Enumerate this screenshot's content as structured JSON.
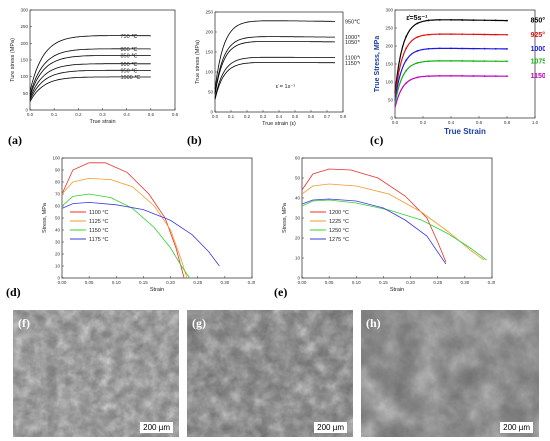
{
  "chart_data": [
    {
      "panel": "(a)",
      "type": "line",
      "xlabel": "True strain",
      "ylabel": "Ture stress (MPa)",
      "xlim": [
        0,
        0.6
      ],
      "ylim": [
        0,
        300
      ],
      "xticks": [
        "0.0",
        "0.1",
        "0.2",
        "0.3",
        "0.4",
        "0.5",
        "0.6"
      ],
      "yticks": [
        "0",
        "50",
        "100",
        "150",
        "200",
        "250",
        "300"
      ],
      "series": [
        {
          "name": "750 ℃",
          "peak": 225,
          "end": 0.5,
          "color": "#000000"
        },
        {
          "name": "800 ℃",
          "peak": 185,
          "end": 0.5,
          "color": "#000000"
        },
        {
          "name": "850 ℃",
          "peak": 165,
          "end": 0.5,
          "color": "#000000"
        },
        {
          "name": "900 ℃",
          "peak": 140,
          "end": 0.5,
          "color": "#000000"
        },
        {
          "name": "950 ℃",
          "peak": 120,
          "end": 0.5,
          "color": "#000000"
        },
        {
          "name": "1000 ℃",
          "peak": 100,
          "end": 0.5,
          "color": "#000000"
        }
      ]
    },
    {
      "panel": "(b)",
      "type": "line",
      "xlabel": "True strain (ε)",
      "ylabel": "True stress (MPa)",
      "xlim": [
        0,
        0.8
      ],
      "ylim": [
        0,
        250
      ],
      "xticks": [
        "0.0",
        "0.1",
        "0.2",
        "0.3",
        "0.4",
        "0.5",
        "0.6",
        "0.7",
        "0.8"
      ],
      "yticks": [
        "0",
        "50",
        "100",
        "150",
        "200",
        "250"
      ],
      "annotation": "ε̇ = 1s⁻¹",
      "series": [
        {
          "name": "950℃",
          "peak": 230,
          "end": 0.75,
          "color": "#000000"
        },
        {
          "name": "1000℃",
          "peak": 190,
          "end": 0.75,
          "color": "#000000"
        },
        {
          "name": "1050℃",
          "peak": 178,
          "end": 0.75,
          "color": "#000000"
        },
        {
          "name": "1100℃",
          "peak": 138,
          "end": 0.75,
          "color": "#000000"
        },
        {
          "name": "1150℃",
          "peak": 125,
          "end": 0.75,
          "color": "#000000"
        }
      ]
    },
    {
      "panel": "(c)",
      "type": "line",
      "xlabel": "True Strain",
      "ylabel": "True Stress, MPa",
      "xlim": [
        0,
        1.0
      ],
      "ylim": [
        0,
        300
      ],
      "xticks": [
        "0.0",
        "0.2",
        "0.4",
        "0.6",
        "0.8",
        "1.0"
      ],
      "yticks": [
        "0",
        "50",
        "100",
        "150",
        "200",
        "250",
        "300"
      ],
      "annotation": "ε̇=5s⁻¹",
      "series": [
        {
          "name": "850°C",
          "peak": 275,
          "end": 0.8,
          "color": "#000000"
        },
        {
          "name": "925°C",
          "peak": 235,
          "end": 0.8,
          "color": "#e01010"
        },
        {
          "name": "1000°C",
          "peak": 195,
          "end": 0.8,
          "color": "#1a1adf"
        },
        {
          "name": "1075°C",
          "peak": 160,
          "end": 0.8,
          "color": "#12b312"
        },
        {
          "name": "1150°C",
          "peak": 118,
          "end": 0.8,
          "color": "#c000c0"
        }
      ]
    },
    {
      "panel": "(d)",
      "type": "line",
      "xlabel": "Strain",
      "ylabel": "Stress, MPa",
      "xlim": [
        0,
        0.35
      ],
      "ylim": [
        0,
        100
      ],
      "xticks": [
        "0.00",
        "0.05",
        "0.10",
        "0.15",
        "0.20",
        "0.25",
        "0.30",
        "0.35"
      ],
      "yticks": [
        "0",
        "10",
        "20",
        "30",
        "40",
        "50",
        "60",
        "70",
        "80",
        "90",
        "100"
      ],
      "series": [
        {
          "name": "1100 °C",
          "points": [
            [
              0,
              70
            ],
            [
              0.02,
              90
            ],
            [
              0.05,
              96
            ],
            [
              0.08,
              96
            ],
            [
              0.12,
              88
            ],
            [
              0.16,
              70
            ],
            [
              0.19,
              50
            ],
            [
              0.21,
              25
            ],
            [
              0.225,
              0
            ]
          ],
          "color": "#e8302a"
        },
        {
          "name": "1125 °C",
          "points": [
            [
              0,
              70
            ],
            [
              0.02,
              80
            ],
            [
              0.05,
              83
            ],
            [
              0.09,
              82
            ],
            [
              0.13,
              76
            ],
            [
              0.17,
              60
            ],
            [
              0.2,
              40
            ],
            [
              0.22,
              15
            ],
            [
              0.23,
              0
            ]
          ],
          "color": "#f39a2a"
        },
        {
          "name": "1150 °C",
          "points": [
            [
              0,
              60
            ],
            [
              0.02,
              68
            ],
            [
              0.05,
              70
            ],
            [
              0.09,
              67
            ],
            [
              0.13,
              58
            ],
            [
              0.17,
              42
            ],
            [
              0.2,
              25
            ],
            [
              0.22,
              10
            ],
            [
              0.235,
              0
            ]
          ],
          "color": "#2fd12f"
        },
        {
          "name": "1175 °C",
          "points": [
            [
              0,
              58
            ],
            [
              0.02,
              62
            ],
            [
              0.05,
              63
            ],
            [
              0.1,
              61
            ],
            [
              0.15,
              57
            ],
            [
              0.2,
              48
            ],
            [
              0.24,
              36
            ],
            [
              0.27,
              22
            ],
            [
              0.29,
              10
            ]
          ],
          "color": "#3a3ae0"
        }
      ]
    },
    {
      "panel": "(e)",
      "type": "line",
      "xlabel": "Strain",
      "ylabel": "Stress, MPa",
      "xlim": [
        0,
        0.35
      ],
      "ylim": [
        0,
        60
      ],
      "xticks": [
        "0.00",
        "0.05",
        "0.10",
        "0.15",
        "0.20",
        "0.25",
        "0.30",
        "0.35"
      ],
      "yticks": [
        "0",
        "10",
        "20",
        "30",
        "40",
        "50",
        "60"
      ],
      "series": [
        {
          "name": "1200 °C",
          "points": [
            [
              0,
              44
            ],
            [
              0.02,
              52
            ],
            [
              0.05,
              54.5
            ],
            [
              0.09,
              54
            ],
            [
              0.14,
              50
            ],
            [
              0.19,
              41
            ],
            [
              0.23,
              30
            ],
            [
              0.25,
              18
            ],
            [
              0.265,
              8
            ]
          ],
          "color": "#e8302a"
        },
        {
          "name": "1225 °C",
          "points": [
            [
              0,
              42
            ],
            [
              0.02,
              46
            ],
            [
              0.05,
              47
            ],
            [
              0.1,
              46
            ],
            [
              0.16,
              42
            ],
            [
              0.22,
              33
            ],
            [
              0.27,
              23
            ],
            [
              0.31,
              14
            ],
            [
              0.335,
              9
            ]
          ],
          "color": "#f39a2a"
        },
        {
          "name": "1250 °C",
          "points": [
            [
              0,
              36
            ],
            [
              0.02,
              38.5
            ],
            [
              0.05,
              39
            ],
            [
              0.1,
              37.5
            ],
            [
              0.16,
              34
            ],
            [
              0.22,
              29
            ],
            [
              0.27,
              22
            ],
            [
              0.31,
              15
            ],
            [
              0.34,
              9
            ]
          ],
          "color": "#2fd12f"
        },
        {
          "name": "1275 °C",
          "points": [
            [
              0,
              37
            ],
            [
              0.02,
              39
            ],
            [
              0.05,
              39.5
            ],
            [
              0.1,
              38.5
            ],
            [
              0.15,
              35
            ],
            [
              0.19,
              29
            ],
            [
              0.23,
              21
            ],
            [
              0.25,
              13
            ],
            [
              0.265,
              7
            ]
          ],
          "color": "#3a3ae0"
        }
      ]
    }
  ],
  "panels": {
    "a": "(a)",
    "b": "(b)",
    "c": "(c)",
    "d": "(d)",
    "e": "(e)",
    "f": "(f)",
    "g": "(g)",
    "h": "(h)"
  },
  "micrographs": [
    {
      "label": "(f)",
      "scale": "200 µm"
    },
    {
      "label": "(g)",
      "scale": "200 µm"
    },
    {
      "label": "(h)",
      "scale": "200 µm"
    }
  ]
}
